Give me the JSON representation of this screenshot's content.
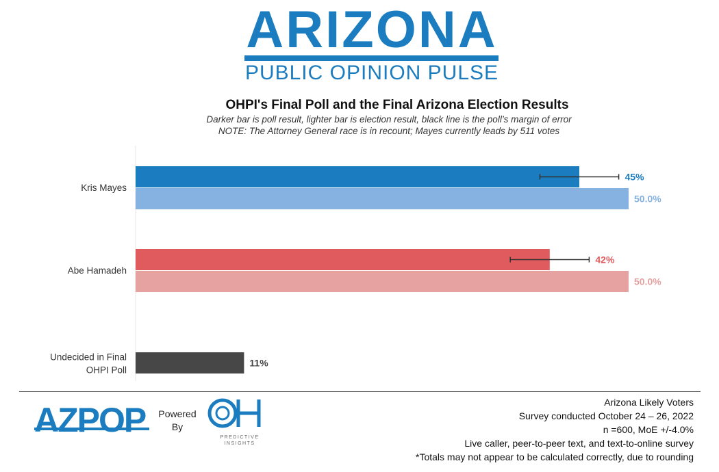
{
  "header": {
    "logo_title": "ARIZONA",
    "logo_subtitle": "PUBLIC OPINION PULSE"
  },
  "chart_data": {
    "type": "bar",
    "orientation": "horizontal",
    "title": "OHPI's Final Poll and the Final Arizona Election Results",
    "subtitle": "Darker bar is poll result, lighter bar is election result, black line is the poll’s margin of error",
    "note": "NOTE: The Attorney General race is in recount; Mayes currently leads by 511 votes",
    "xlim": [
      0,
      60
    ],
    "grid": false,
    "legend": "none",
    "categories": [
      "Kris Mayes",
      "Abe Hamadeh",
      "Undecided in Final OHPI Poll"
    ],
    "bars": [
      {
        "category": "Kris Mayes",
        "kind": "poll",
        "value": 45,
        "label": "45%",
        "color": "#1b7dbf",
        "error_bar": [
          41,
          49
        ]
      },
      {
        "category": "Kris Mayes",
        "kind": "election",
        "value": 50.0,
        "label": "50.0%",
        "color": "#85b2e0"
      },
      {
        "category": "Abe Hamadeh",
        "kind": "poll",
        "value": 42,
        "label": "42%",
        "color": "#df5b5e",
        "error_bar": [
          38,
          46
        ]
      },
      {
        "category": "Abe Hamadeh",
        "kind": "election",
        "value": 50.0,
        "label": "50.0%",
        "color": "#e6a1a1"
      },
      {
        "category": "Undecided in Final OHPI Poll",
        "kind": "poll",
        "value": 11,
        "label": "11%",
        "color": "#474747"
      }
    ]
  },
  "footer": {
    "azpop_logo": "AZPOP",
    "powered_by": [
      "Powered",
      "By"
    ],
    "oh_logo": "OH",
    "oh_logo_text": [
      "PREDICTIVE",
      "INSIGHTS"
    ],
    "notes": [
      "Arizona Likely Voters",
      "Survey conducted October 24 – 26, 2022",
      "n =600, MoE +/-4.0%",
      "Live caller, peer-to-peer text, and text-to-online survey",
      "*Totals may not appear to be calculated correctly, due to rounding"
    ]
  }
}
